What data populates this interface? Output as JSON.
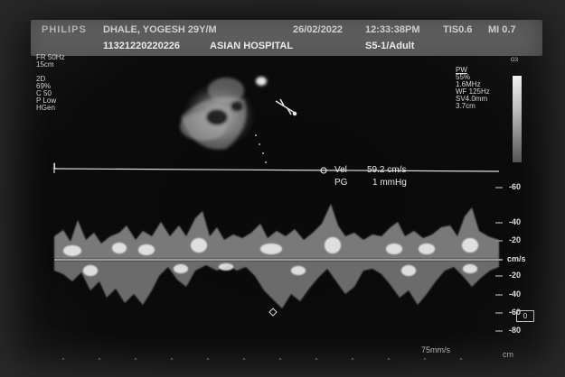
{
  "header": {
    "brand": "PHILIPS",
    "patient": "DHALE, YOGESH 29Y/M",
    "patient_id": "11321220220226",
    "hospital": "ASIAN HOSPITAL",
    "date": "26/02/2022",
    "time": "12:33:38PM",
    "tis": "TIS0.6",
    "mi": "MI 0.7",
    "probe": "S5-1/Adult"
  },
  "left_params": [
    "FR 50Hz",
    "15cm",
    "",
    "2D",
    "69%",
    "C 50",
    "P Low",
    "HGen"
  ],
  "right_params": [
    "PW",
    "55%",
    "1.6MHz",
    "WF 125Hz",
    "SV4.0mm",
    "3.7cm"
  ],
  "grayscale_top": "G3",
  "measurement": {
    "vel_label": "Vel",
    "vel_value": "59.2 cm/s",
    "pg_label": "PG",
    "pg_value": "1 mmHg"
  },
  "velocity_scale": {
    "labels": [
      "-60",
      "-40",
      "-20",
      "cm/s",
      "-20",
      "-40",
      "-60",
      "-80"
    ],
    "units": "cm/s"
  },
  "sweep_speed": "75mm/s",
  "baseline_box": "0",
  "bottom_right": "cm",
  "cursor_label": "1"
}
